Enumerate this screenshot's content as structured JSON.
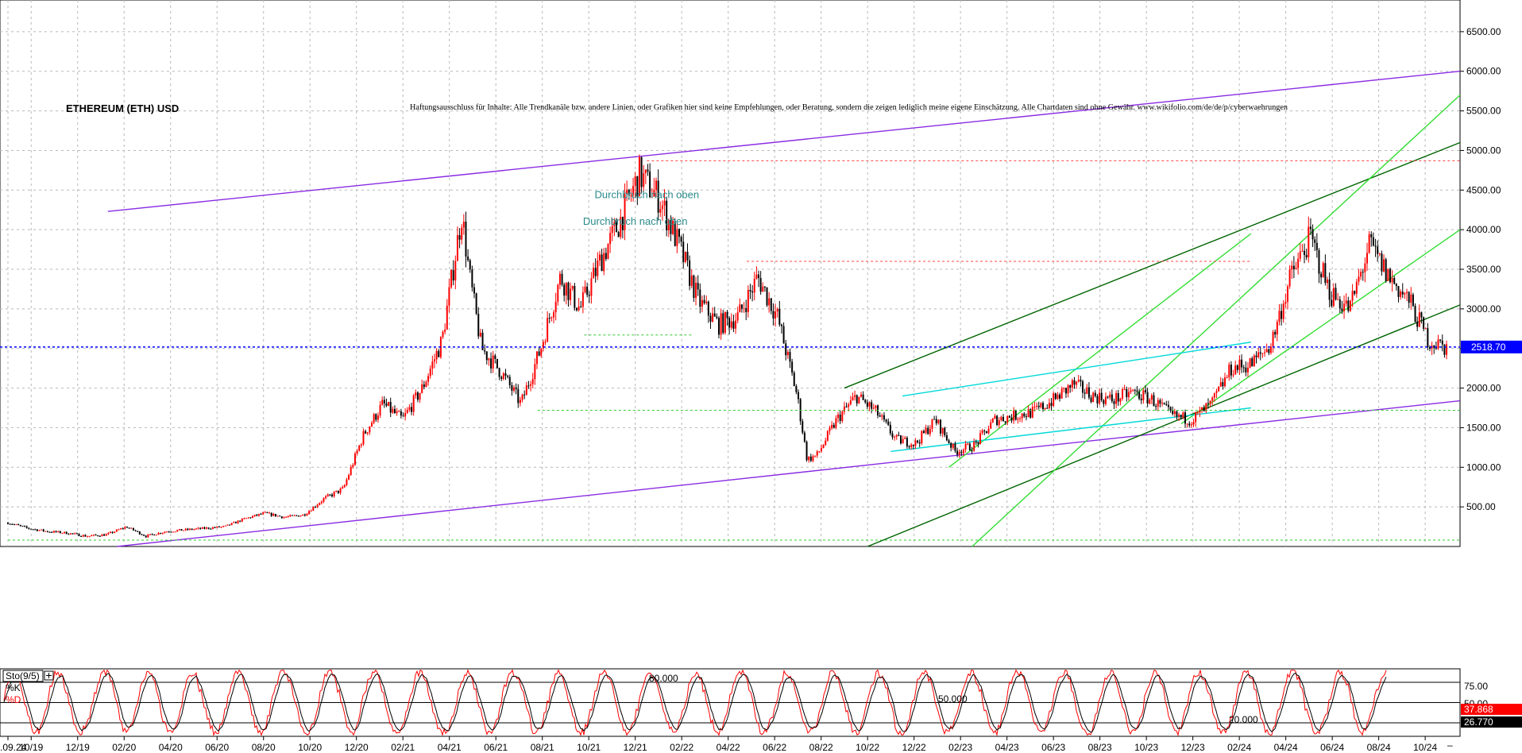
{
  "chart_data": {
    "type": "candlestick",
    "title": "ETHEREUM (ETH) USD",
    "disclaimer": "Haftungsausschluss für Inhalte: Alle Trendkanäle bzw. andere Linien, oder Grafiken hier sind keine Empfehlungen, oder Beratung, sondern die zeigen lediglich meine eigene Einschätzung. Alle Chartdaten sind ohne Gewähr. www.wikifolio.com/de/de/p/cyberwaehrungen",
    "y_range": [
      0,
      6900
    ],
    "y_ticks": [
      500,
      1000,
      1500,
      2000,
      2500,
      3000,
      3500,
      4000,
      4500,
      5000,
      5500,
      6000,
      6500
    ],
    "y_tick_labels": [
      "500.00",
      "1000.00",
      "1500.00",
      "2000.00",
      "2500.00",
      "3000.00",
      "3500.00",
      "4000.00",
      "4500.00",
      "5000.00",
      "5500.00",
      "6000.00",
      "6500.00"
    ],
    "x_tick_labels": [
      "02.09.24",
      "10/19",
      "12/19",
      "02/20",
      "04/20",
      "06/20",
      "08/20",
      "10/20",
      "12/20",
      "02/21",
      "04/21",
      "06/21",
      "08/21",
      "10/21",
      "12/21",
      "02/22",
      "04/22",
      "06/22",
      "08/22",
      "10/22",
      "12/22",
      "02/23",
      "04/23",
      "06/23",
      "08/23",
      "10/23",
      "12/23",
      "02/24",
      "04/24",
      "06/24",
      "08/24",
      "10/24"
    ],
    "x_tick_months": [
      0,
      1,
      3,
      5,
      7,
      9,
      11,
      13,
      15,
      17,
      19,
      21,
      23,
      25,
      27,
      29,
      31,
      33,
      35,
      37,
      39,
      41,
      43,
      45,
      47,
      49,
      51,
      53,
      55,
      57,
      59,
      61
    ],
    "x_months_range": [
      0,
      62.5
    ],
    "last_price": 2518.7,
    "last_price_label": "2518.70",
    "price_path": [
      [
        0,
        300
      ],
      [
        1,
        230
      ],
      [
        2,
        190
      ],
      [
        3,
        170
      ],
      [
        4,
        130
      ],
      [
        5,
        150
      ],
      [
        6,
        250
      ],
      [
        7,
        130
      ],
      [
        8,
        190
      ],
      [
        9,
        210
      ],
      [
        10,
        230
      ],
      [
        11,
        250
      ],
      [
        12,
        350
      ],
      [
        13,
        420
      ],
      [
        14,
        370
      ],
      [
        15,
        400
      ],
      [
        16,
        600
      ],
      [
        17,
        730
      ],
      [
        18,
        1400
      ],
      [
        19,
        1800
      ],
      [
        20,
        1600
      ],
      [
        21,
        2000
      ],
      [
        22,
        2600
      ],
      [
        23,
        4200
      ],
      [
        23.4,
        3400
      ],
      [
        24,
        2500
      ],
      [
        25,
        2200
      ],
      [
        26,
        1800
      ],
      [
        27,
        2500
      ],
      [
        28,
        3400
      ],
      [
        29,
        3000
      ],
      [
        30,
        3600
      ],
      [
        31,
        4100
      ],
      [
        32,
        4700
      ],
      [
        33,
        4400
      ],
      [
        34,
        3800
      ],
      [
        35,
        3100
      ],
      [
        36,
        2800
      ],
      [
        37,
        2900
      ],
      [
        38,
        3400
      ],
      [
        39,
        2900
      ],
      [
        40,
        1900
      ],
      [
        40.5,
        1100
      ],
      [
        41,
        1150
      ],
      [
        42,
        1600
      ],
      [
        43,
        1900
      ],
      [
        44,
        1700
      ],
      [
        45,
        1350
      ],
      [
        46,
        1300
      ],
      [
        47,
        1600
      ],
      [
        48,
        1200
      ],
      [
        49,
        1280
      ],
      [
        50,
        1600
      ],
      [
        51,
        1650
      ],
      [
        52,
        1700
      ],
      [
        53,
        1850
      ],
      [
        54,
        2050
      ],
      [
        55,
        1900
      ],
      [
        56,
        1850
      ],
      [
        57,
        1950
      ],
      [
        58,
        1850
      ],
      [
        59,
        1650
      ],
      [
        60,
        1600
      ],
      [
        61,
        1800
      ],
      [
        62,
        2250
      ],
      [
        63,
        2300
      ],
      [
        64,
        2550
      ],
      [
        65,
        3400
      ],
      [
        66,
        3900
      ],
      [
        67,
        3200
      ],
      [
        68,
        3000
      ],
      [
        69,
        3800
      ],
      [
        70,
        3400
      ],
      [
        71,
        3100
      ],
      [
        72,
        2600
      ],
      [
        73,
        2500
      ]
    ],
    "price_path_month_scale": 0.8493,
    "annotations": [
      {
        "text": "Durchbruch nach oben",
        "month": 27.5,
        "value": 4400
      },
      {
        "text": "Durchbruch nach oben",
        "month": 27.0,
        "value": 4060
      }
    ],
    "trend_lines": [
      {
        "color": "#8a2be2",
        "from": [
          4.3,
          4230
        ],
        "to": [
          62.5,
          6000
        ]
      },
      {
        "color": "#8a2be2",
        "from": [
          4.7,
          0
        ],
        "to": [
          62.5,
          1840
        ]
      },
      {
        "color": "#006400",
        "from": [
          36.0,
          2000
        ],
        "to": [
          62.5,
          5100
        ]
      },
      {
        "color": "#006400",
        "from": [
          37.0,
          0
        ],
        "to": [
          62.5,
          3050
        ]
      },
      {
        "color": "#33dd33",
        "from": [
          41.5,
          0
        ],
        "to": [
          62.5,
          5700
        ]
      },
      {
        "color": "#33dd33",
        "from": [
          50.5,
          1550
        ],
        "to": [
          62.5,
          4000
        ]
      },
      {
        "color": "#33dd33",
        "from": [
          40.5,
          1000
        ],
        "to": [
          53.5,
          3950
        ]
      },
      {
        "color": "#00d8d8",
        "from": [
          38.0,
          1200
        ],
        "to": [
          53.5,
          1750
        ]
      },
      {
        "color": "#00d8d8",
        "from": [
          38.5,
          1900
        ],
        "to": [
          53.5,
          2580
        ]
      }
    ],
    "support_lines": [
      {
        "color": "#ff4444",
        "from": [
          27.5,
          4870
        ],
        "to": [
          62.5,
          4870
        ]
      },
      {
        "color": "#ff4444",
        "from": [
          31.8,
          3600
        ],
        "to": [
          53.5,
          3600
        ]
      },
      {
        "color": "#33cc33",
        "from": [
          22.8,
          1720
        ],
        "to": [
          62.5,
          1720
        ]
      },
      {
        "color": "#33cc33",
        "from": [
          0,
          80
        ],
        "to": [
          62.5,
          80
        ]
      },
      {
        "color": "#33cc33",
        "from": [
          24.8,
          2670
        ],
        "to": [
          29.5,
          2670
        ]
      }
    ],
    "oscillator": {
      "label": "Sto(9/5)",
      "k_label": "%K",
      "d_label": "%D",
      "levels": [
        80,
        50,
        20
      ],
      "level_labels": [
        "80.000",
        "50.000",
        "20.000"
      ],
      "axis_labels": [
        "75.00",
        "50.00"
      ],
      "k_value_label": "37.868",
      "d_value_label": "26.770",
      "k_color": "#ff0000",
      "d_color": "#000000"
    },
    "colors": {
      "up_candle": "#ff0000",
      "down_candle": "#000000",
      "grid": "#b8b8b8",
      "last_price_line": "#0000ff"
    }
  }
}
